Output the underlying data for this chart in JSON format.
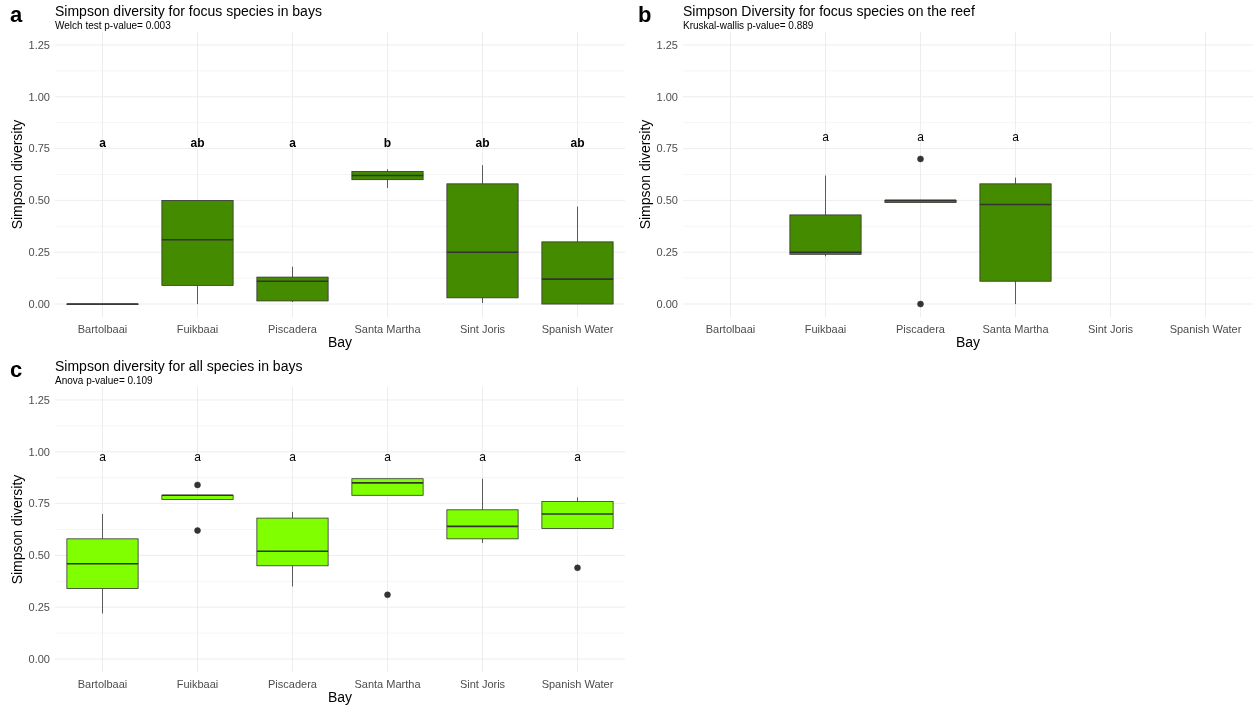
{
  "chart_data": [
    {
      "type": "box",
      "title": "Simpson diversity for focus species in bays",
      "subtitle": "Welch test p-value= 0.003",
      "xlabel": "Bay",
      "ylabel": "Simpson diversity",
      "categories": [
        "Bartolbaai",
        "Fuikbaai",
        "Piscadera",
        "Santa Martha",
        "Sint Joris",
        "Spanish Water"
      ],
      "color": "#458b00",
      "ylim": [
        -0.0625,
        1.3125
      ],
      "yticks": [
        {
          "value": 0,
          "label": "0.00"
        },
        {
          "value": 0.125,
          "label": null
        },
        {
          "value": 0.25,
          "label": "0.25"
        },
        {
          "value": 0.375,
          "label": null
        },
        {
          "value": 0.5,
          "label": "0.50"
        },
        {
          "value": 0.625,
          "label": null
        },
        {
          "value": 0.75,
          "label": "0.75"
        },
        {
          "value": 0.875,
          "label": null
        },
        {
          "value": 1,
          "label": "1.00"
        },
        {
          "value": 1.125,
          "label": null
        },
        {
          "value": 1.25,
          "label": "1.25"
        }
      ],
      "grid": true,
      "boxes": [
        {
          "low": 0,
          "q1": 0,
          "median": 0,
          "q3": 0,
          "high": 0
        },
        {
          "low": 0,
          "q1": 0.09,
          "median": 0.31,
          "q3": 0.5,
          "high": 0.5
        },
        {
          "low": 0.01,
          "q1": 0.015,
          "median": 0.11,
          "q3": 0.13,
          "high": 0.18
        },
        {
          "low": 0.56,
          "q1": 0.6,
          "median": 0.62,
          "q3": 0.64,
          "high": 0.65
        },
        {
          "low": 0.005,
          "q1": 0.03,
          "median": 0.25,
          "q3": 0.58,
          "high": 0.67
        },
        {
          "low": 0,
          "q1": 0,
          "median": 0.12,
          "q3": 0.3,
          "high": 0.47
        }
      ],
      "annotations": [
        "a",
        "a",
        "ab",
        "a",
        "b",
        "ab",
        "ab"
      ]
    },
    {
      "type": "box",
      "title": "Simpson Diversity for focus species on the reef",
      "subtitle": "Kruskal-wallis p-value= 0.889",
      "xlabel": "Bay",
      "ylabel": "Simpson diversity",
      "categories": [
        "Bartolbaai",
        "Fuikbaai",
        "Piscadera",
        "Santa Martha",
        "Sint Joris",
        "Spanish Water"
      ],
      "color": "#458b00",
      "ylim": [
        -0.0625,
        1.3125
      ],
      "yticks": [
        {
          "value": 0,
          "label": "0.00"
        },
        {
          "value": 0.125,
          "label": null
        },
        {
          "value": 0.25,
          "label": "0.25"
        },
        {
          "value": 0.375,
          "label": null
        },
        {
          "value": 0.5,
          "label": "0.50"
        },
        {
          "value": 0.625,
          "label": null
        },
        {
          "value": 0.75,
          "label": "0.75"
        },
        {
          "value": 0.875,
          "label": null
        },
        {
          "value": 1,
          "label": "1.00"
        },
        {
          "value": 1.125,
          "label": null
        },
        {
          "value": 1.25,
          "label": "1.25"
        }
      ],
      "grid": true,
      "boxes": [
        null,
        {
          "low": 0.23,
          "q1": 0.24,
          "median": 0.25,
          "q3": 0.43,
          "high": 0.62
        },
        {
          "low": 0.49,
          "q1": 0.49,
          "median": 0.5,
          "q3": 0.5,
          "high": 0.5,
          "outliers": [
            0.7,
            0
          ]
        },
        {
          "low": 0,
          "q1": 0.11,
          "median": 0.48,
          "q3": 0.58,
          "high": 0.61
        },
        null,
        null
      ],
      "annotations": [
        "b",
        "a",
        "a",
        "a"
      ]
    },
    {
      "type": "box",
      "title": "Simpson diversity for all species in bays",
      "subtitle": "Anova p-value= 0.109",
      "xlabel": "Bay",
      "ylabel": "Simpson diversity",
      "categories": [
        "Bartolbaai",
        "Fuikbaai",
        "Piscadera",
        "Santa Martha",
        "Sint Joris",
        "Spanish Water"
      ],
      "color": "#7fff00",
      "ylim": [
        -0.0625,
        1.3125
      ],
      "yticks": [
        {
          "value": 0,
          "label": "0.00"
        },
        {
          "value": 0.125,
          "label": null
        },
        {
          "value": 0.25,
          "label": "0.25"
        },
        {
          "value": 0.375,
          "label": null
        },
        {
          "value": 0.5,
          "label": "0.50"
        },
        {
          "value": 0.625,
          "label": null
        },
        {
          "value": 0.75,
          "label": "0.75"
        },
        {
          "value": 0.875,
          "label": null
        },
        {
          "value": 1,
          "label": "1.00"
        },
        {
          "value": 1.125,
          "label": null
        },
        {
          "value": 1.25,
          "label": "1.25"
        }
      ],
      "grid": true,
      "boxes": [
        {
          "low": 0.22,
          "q1": 0.34,
          "median": 0.46,
          "q3": 0.58,
          "high": 0.7
        },
        {
          "low": 0.77,
          "q1": 0.77,
          "median": 0.79,
          "q3": 0.79,
          "high": 0.79,
          "outliers": [
            0.84,
            0.62
          ]
        },
        {
          "low": 0.35,
          "q1": 0.45,
          "median": 0.52,
          "q3": 0.68,
          "high": 0.71
        },
        {
          "low": 0.79,
          "q1": 0.79,
          "median": 0.85,
          "q3": 0.87,
          "high": 0.87,
          "outliers": [
            0.31
          ]
        },
        {
          "low": 0.56,
          "q1": 0.58,
          "median": 0.64,
          "q3": 0.72,
          "high": 0.87
        },
        {
          "low": 0.63,
          "q1": 0.63,
          "median": 0.7,
          "q3": 0.76,
          "high": 0.78,
          "outliers": [
            0.44
          ]
        }
      ],
      "annotations": [
        "c",
        "a",
        "a",
        "a",
        "a",
        "a",
        "a"
      ]
    }
  ]
}
